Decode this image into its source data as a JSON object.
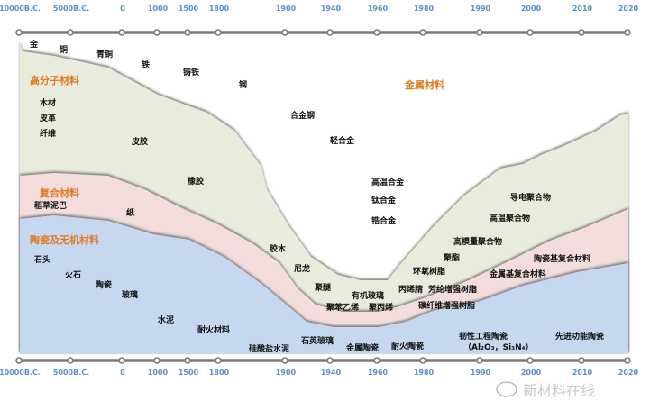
{
  "timeline": {
    "ticks": [
      "10000B.C.",
      "5000B.C.",
      "0",
      "1000",
      "1500",
      "1800",
      "1900",
      "1940",
      "1960",
      "1980",
      "1990",
      "2000",
      "2010",
      "2020"
    ]
  },
  "categories": {
    "metal": "金属材料",
    "polymer": "高分子材料",
    "composite": "复合材料",
    "ceramic": "陶瓷及无机材料"
  },
  "colors": {
    "metal": "#ffffff",
    "polymer": "#e9ebdc",
    "composite": "#f2dcdc",
    "ceramic": "#c6d8ef",
    "category_text": "#e07b22",
    "tick_text": "#5b8fc7",
    "axis": "#7a7a7a"
  },
  "labels": {
    "metal": [
      "金",
      "铜",
      "青铜",
      "铁",
      "铸铁",
      "钢",
      "合金钢",
      "轻合金",
      "高温合金",
      "钛合金",
      "锆合金"
    ],
    "polymer": [
      "木材",
      "皮革",
      "纤维",
      "皮胶",
      "橡胶",
      "胶木",
      "尼龙",
      "聚醚",
      "有机玻璃",
      "聚苯乙烯",
      "聚丙烯",
      "丙烯腈",
      "环氧树脂",
      "聚酯",
      "高模量聚合物",
      "高温聚合物",
      "导电聚合物"
    ],
    "composite": [
      "稻草泥巴",
      "纸",
      "碳纤维增强树脂",
      "芳纶增强树脂",
      "金属基复合材料",
      "陶瓷基复合材料"
    ],
    "ceramic": [
      "石头",
      "火石",
      "陶瓷",
      "玻璃",
      "水泥",
      "耐火材料",
      "硅酸盐水泥",
      "石英玻璃",
      "金属陶瓷",
      "耐火陶瓷",
      "韧性工程陶瓷",
      "（Al₂O₃，Si₃N₄）",
      "先进功能陶瓷"
    ]
  },
  "watermark": "新材料在线"
}
